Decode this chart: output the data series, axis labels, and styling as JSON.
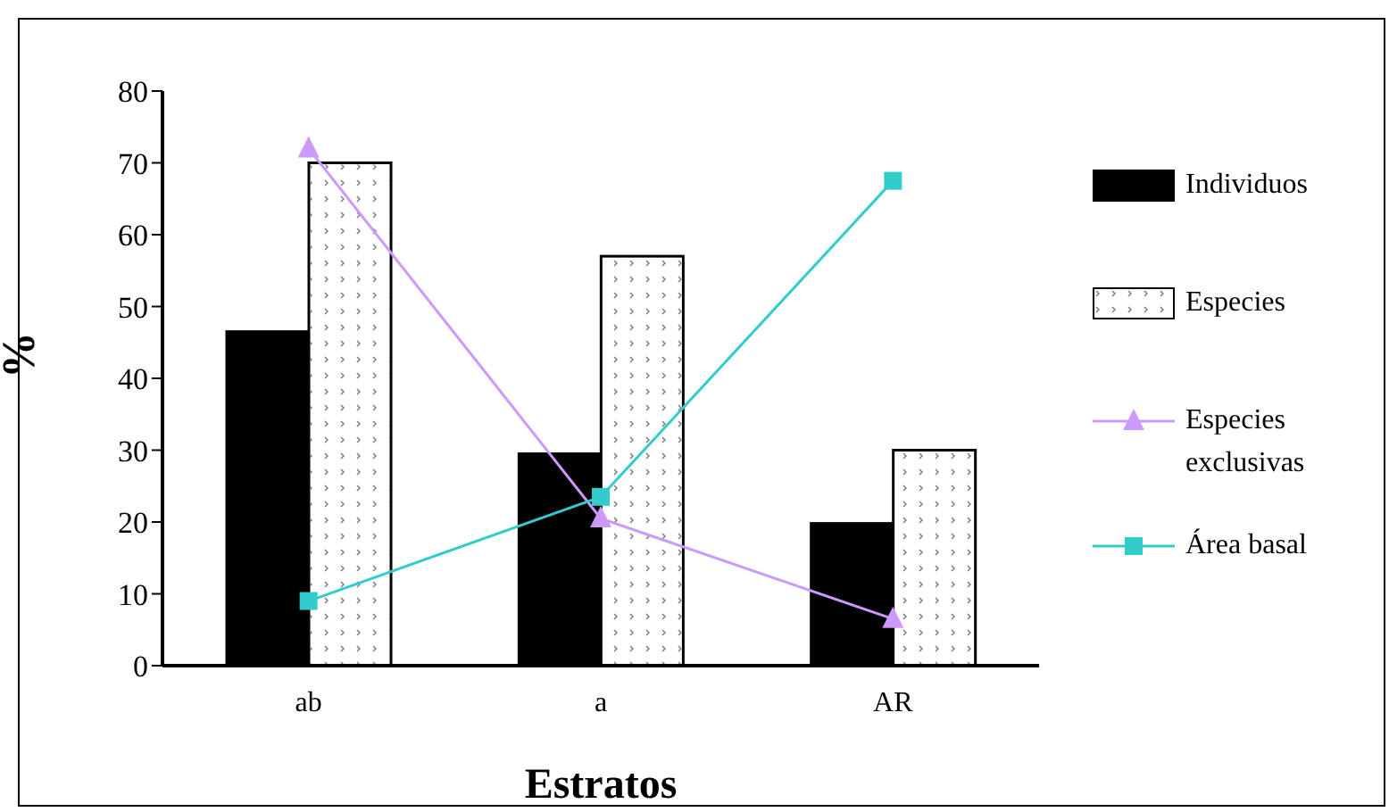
{
  "chart_data": {
    "type": "bar",
    "xlabel": "Estratos",
    "ylabel": "%",
    "categories": [
      "ab",
      "a",
      "AR"
    ],
    "series": [
      {
        "name": "Individuos",
        "color": "#000000",
        "values": [
          46.5,
          29.5,
          19.8
        ]
      },
      {
        "name": "Especies",
        "color": "#ffffff",
        "values": [
          70,
          57,
          30
        ]
      },
      {
        "name": "Especies exclusivas",
        "type": "line",
        "color": "#cc99ff",
        "marker": "triangle",
        "values": [
          72,
          20.5,
          6.5
        ]
      },
      {
        "name": "Área basal",
        "type": "line",
        "color": "#33cccc",
        "marker": "square",
        "values": [
          9,
          23.5,
          67.5
        ]
      }
    ],
    "ylim": [
      0,
      80
    ],
    "yticks": [
      0,
      10,
      20,
      30,
      40,
      50,
      60,
      70,
      80
    ],
    "grid": false,
    "legend": "right"
  }
}
